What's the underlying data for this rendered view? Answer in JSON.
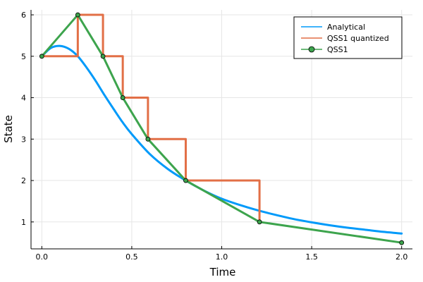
{
  "chart_data": {
    "type": "line",
    "title": "",
    "xlabel": "Time",
    "ylabel": "State",
    "xlim": [
      -0.06,
      2.06
    ],
    "ylim": [
      0.35,
      6.12
    ],
    "xticks": [
      0.0,
      0.5,
      1.0,
      1.5,
      2.0
    ],
    "xtick_labels": [
      "0.0",
      "0.5",
      "1.0",
      "1.5",
      "2.0"
    ],
    "yticks": [
      1,
      2,
      3,
      4,
      5,
      6
    ],
    "ytick_labels": [
      "1",
      "2",
      "3",
      "4",
      "5",
      "6"
    ],
    "grid": true,
    "legend_position": "top-right",
    "series": [
      {
        "name": "Analytical",
        "style": "line",
        "color": "#009AFA",
        "x": [
          0.0,
          0.05,
          0.1,
          0.15,
          0.2,
          0.25,
          0.3,
          0.35,
          0.4,
          0.45,
          0.5,
          0.6,
          0.7,
          0.8,
          0.9,
          1.0,
          1.1,
          1.2,
          1.3,
          1.4,
          1.5,
          1.6,
          1.7,
          1.8,
          1.9,
          2.0
        ],
        "y": [
          5.0,
          5.2,
          5.25,
          5.18,
          5.0,
          4.72,
          4.4,
          4.05,
          3.72,
          3.4,
          3.12,
          2.64,
          2.28,
          2.0,
          1.76,
          1.56,
          1.41,
          1.28,
          1.17,
          1.07,
          0.99,
          0.92,
          0.86,
          0.81,
          0.76,
          0.72
        ]
      },
      {
        "name": "QSS1 quantized",
        "style": "step",
        "color": "#E26F46",
        "x": [
          0.0,
          0.2,
          0.34,
          0.45,
          0.59,
          0.8,
          1.21
        ],
        "y": [
          5,
          6,
          5,
          4,
          3,
          2,
          1
        ]
      },
      {
        "name": "QSS1",
        "style": "line-markers",
        "color": "#3DA44D",
        "x": [
          0.0,
          0.2,
          0.34,
          0.45,
          0.59,
          0.8,
          1.21,
          2.0
        ],
        "y": [
          5.0,
          6.0,
          5.0,
          4.0,
          3.0,
          2.0,
          1.0,
          0.5
        ]
      }
    ]
  }
}
